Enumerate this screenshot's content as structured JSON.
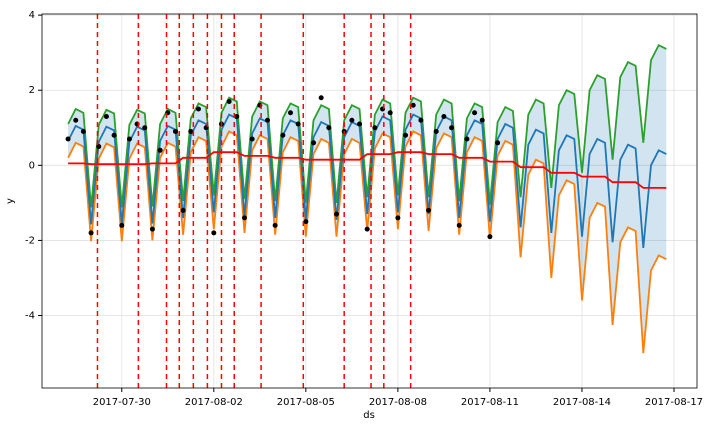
{
  "chart_data": {
    "type": "line",
    "xlabel": "ds",
    "ylabel": "y",
    "x": [
      "2017-07-28 06:00",
      "2017-07-28 12:00",
      "2017-07-28 18:00",
      "2017-07-29 00:00",
      "2017-07-29 06:00",
      "2017-07-29 12:00",
      "2017-07-29 18:00",
      "2017-07-30 00:00",
      "2017-07-30 06:00",
      "2017-07-30 12:00",
      "2017-07-30 18:00",
      "2017-07-31 00:00",
      "2017-07-31 06:00",
      "2017-07-31 12:00",
      "2017-07-31 18:00",
      "2017-08-01 00:00",
      "2017-08-01 06:00",
      "2017-08-01 12:00",
      "2017-08-01 18:00",
      "2017-08-02 00:00",
      "2017-08-02 06:00",
      "2017-08-02 12:00",
      "2017-08-02 18:00",
      "2017-08-03 00:00",
      "2017-08-03 06:00",
      "2017-08-03 12:00",
      "2017-08-03 18:00",
      "2017-08-04 00:00",
      "2017-08-04 06:00",
      "2017-08-04 12:00",
      "2017-08-04 18:00",
      "2017-08-05 00:00",
      "2017-08-05 06:00",
      "2017-08-05 12:00",
      "2017-08-05 18:00",
      "2017-08-06 00:00",
      "2017-08-06 06:00",
      "2017-08-06 12:00",
      "2017-08-06 18:00",
      "2017-08-07 00:00",
      "2017-08-07 06:00",
      "2017-08-07 12:00",
      "2017-08-07 18:00",
      "2017-08-08 00:00",
      "2017-08-08 06:00",
      "2017-08-08 12:00",
      "2017-08-08 18:00",
      "2017-08-09 00:00",
      "2017-08-09 06:00",
      "2017-08-09 12:00",
      "2017-08-09 18:00",
      "2017-08-10 00:00",
      "2017-08-10 06:00",
      "2017-08-10 12:00",
      "2017-08-10 18:00",
      "2017-08-11 00:00",
      "2017-08-11 06:00",
      "2017-08-11 12:00",
      "2017-08-11 18:00",
      "2017-08-12 00:00",
      "2017-08-12 06:00",
      "2017-08-12 12:00",
      "2017-08-12 18:00",
      "2017-08-13 00:00",
      "2017-08-13 06:00",
      "2017-08-13 12:00",
      "2017-08-13 18:00",
      "2017-08-14 00:00",
      "2017-08-14 06:00",
      "2017-08-14 12:00",
      "2017-08-14 18:00",
      "2017-08-15 00:00",
      "2017-08-15 06:00",
      "2017-08-15 12:00",
      "2017-08-15 18:00",
      "2017-08-16 00:00",
      "2017-08-16 06:00",
      "2017-08-16 12:00",
      "2017-08-16 18:00"
    ],
    "xlim": [
      "2017-07-27 09:36",
      "2017-08-17 18:00"
    ],
    "xticks": [
      "2017-07-30",
      "2017-08-02",
      "2017-08-05",
      "2017-08-08",
      "2017-08-11",
      "2017-08-14",
      "2017-08-17"
    ],
    "ylim": [
      -5.93,
      4.03
    ],
    "yticks": [
      -4,
      -2,
      0,
      2,
      4
    ],
    "grid": true,
    "interval": {
      "fill": "#1f77b4",
      "upper_color": "#2ca02c",
      "lower_color": "#ff7f0e",
      "upper": [
        1.1,
        1.5,
        1.4,
        -1.12,
        1.08,
        1.48,
        1.38,
        -1.12,
        1.08,
        1.48,
        1.38,
        -1.1,
        1.1,
        1.5,
        1.4,
        -0.95,
        1.25,
        1.65,
        1.55,
        -0.8,
        1.4,
        1.8,
        1.7,
        -0.9,
        1.3,
        1.7,
        1.6,
        -0.95,
        1.25,
        1.65,
        1.55,
        -1.0,
        1.2,
        1.6,
        1.5,
        -1.0,
        1.2,
        1.6,
        1.5,
        -0.85,
        1.35,
        1.75,
        1.65,
        -0.8,
        1.4,
        1.8,
        1.7,
        -0.85,
        1.35,
        1.75,
        1.65,
        -0.95,
        1.25,
        1.65,
        1.55,
        -1.05,
        1.15,
        1.55,
        1.45,
        -0.85,
        1.35,
        1.75,
        1.65,
        -0.6,
        1.6,
        2.0,
        1.9,
        -0.2,
        2.0,
        2.4,
        2.3,
        0.15,
        2.35,
        2.75,
        2.65,
        0.6,
        2.8,
        3.2,
        3.1
      ],
      "lower": [
        0.2,
        0.6,
        0.5,
        -2.02,
        0.18,
        0.58,
        0.48,
        -2.02,
        0.18,
        0.58,
        0.48,
        -2.0,
        0.2,
        0.6,
        0.5,
        -1.85,
        0.35,
        0.75,
        0.65,
        -1.7,
        0.5,
        0.9,
        0.8,
        -1.8,
        0.4,
        0.8,
        0.7,
        -1.85,
        0.35,
        0.75,
        0.65,
        -1.9,
        0.3,
        0.7,
        0.6,
        -1.9,
        0.3,
        0.7,
        0.6,
        -1.75,
        0.45,
        0.85,
        0.75,
        -1.7,
        0.5,
        0.9,
        0.8,
        -1.75,
        0.45,
        0.85,
        0.75,
        -1.85,
        0.35,
        0.75,
        0.65,
        -1.95,
        0.25,
        0.65,
        0.55,
        -2.45,
        -0.25,
        0.15,
        0.05,
        -3.0,
        -0.8,
        -0.4,
        -0.5,
        -3.6,
        -1.4,
        -1.0,
        -1.1,
        -4.25,
        -2.05,
        -1.65,
        -1.75,
        -5.0,
        -2.8,
        -2.4,
        -2.5
      ]
    },
    "series": [
      {
        "style": "line",
        "color": "#1f77b4",
        "values": [
          0.65,
          1.05,
          0.95,
          -1.57,
          0.63,
          1.03,
          0.93,
          -1.57,
          0.63,
          1.03,
          0.93,
          -1.55,
          0.65,
          1.05,
          0.95,
          -1.4,
          0.8,
          1.2,
          1.1,
          -1.25,
          0.95,
          1.35,
          1.25,
          -1.35,
          0.85,
          1.25,
          1.15,
          -1.4,
          0.8,
          1.2,
          1.1,
          -1.45,
          0.75,
          1.15,
          1.05,
          -1.45,
          0.75,
          1.15,
          1.05,
          -1.3,
          0.9,
          1.3,
          1.2,
          -1.25,
          0.95,
          1.35,
          1.25,
          -1.3,
          0.9,
          1.3,
          1.2,
          -1.4,
          0.8,
          1.2,
          1.1,
          -1.5,
          0.7,
          1.1,
          1.0,
          -1.65,
          0.55,
          0.95,
          0.85,
          -1.8,
          0.4,
          0.8,
          0.7,
          -1.9,
          0.3,
          0.7,
          0.6,
          -2.05,
          0.15,
          0.55,
          0.45,
          -2.2,
          0.0,
          0.4,
          0.3
        ]
      },
      {
        "style": "points",
        "color": "#000000",
        "values": [
          0.7,
          1.2,
          0.9,
          -1.8,
          0.5,
          1.3,
          0.8,
          -1.6,
          0.7,
          1.1,
          1.0,
          -1.7,
          0.4,
          1.4,
          0.9,
          -1.2,
          0.9,
          1.5,
          1.0,
          -1.8,
          1.1,
          1.7,
          1.3,
          -1.4,
          0.7,
          1.6,
          1.2,
          -1.6,
          0.8,
          1.4,
          1.1,
          -1.5,
          0.6,
          1.8,
          1.0,
          -1.3,
          0.9,
          1.2,
          1.1,
          -1.7,
          1.0,
          1.5,
          1.4,
          -1.4,
          0.8,
          1.6,
          1.2,
          -1.2,
          0.9,
          1.3,
          1.0,
          -1.6,
          0.7,
          1.4,
          1.2,
          -1.9,
          0.6,
          null,
          null,
          null,
          null,
          null,
          null,
          null,
          null,
          null,
          null,
          null,
          null,
          null,
          null,
          null,
          null,
          null,
          null,
          null,
          null,
          null,
          null
        ]
      },
      {
        "style": "line",
        "color": "#ff0000",
        "values": [
          0.05,
          0.05,
          0.05,
          0.03,
          0.03,
          0.03,
          0.03,
          0.03,
          0.03,
          0.03,
          0.03,
          0.05,
          0.05,
          0.05,
          0.05,
          0.2,
          0.2,
          0.2,
          0.2,
          0.35,
          0.35,
          0.35,
          0.35,
          0.25,
          0.25,
          0.25,
          0.25,
          0.2,
          0.2,
          0.2,
          0.2,
          0.15,
          0.15,
          0.15,
          0.15,
          0.15,
          0.15,
          0.15,
          0.15,
          0.3,
          0.3,
          0.3,
          0.3,
          0.35,
          0.35,
          0.35,
          0.35,
          0.3,
          0.3,
          0.3,
          0.3,
          0.2,
          0.2,
          0.2,
          0.2,
          0.1,
          0.1,
          0.1,
          0.1,
          -0.05,
          -0.05,
          -0.05,
          -0.05,
          -0.2,
          -0.2,
          -0.2,
          -0.2,
          -0.3,
          -0.3,
          -0.3,
          -0.3,
          -0.45,
          -0.45,
          -0.45,
          -0.45,
          -0.6,
          -0.6,
          -0.6,
          -0.6
        ]
      }
    ],
    "changepoint_color": "#ff0000",
    "changepoints": [
      "2017-07-29 05:00",
      "2017-07-30 13:00",
      "2017-07-31 11:00",
      "2017-07-31 21:00",
      "2017-08-01 08:00",
      "2017-08-01 19:00",
      "2017-08-02 06:00",
      "2017-08-02 16:00",
      "2017-08-03 13:00",
      "2017-08-04 22:00",
      "2017-08-06 06:00",
      "2017-08-07 03:00",
      "2017-08-07 13:00",
      "2017-08-08 10:00"
    ]
  }
}
